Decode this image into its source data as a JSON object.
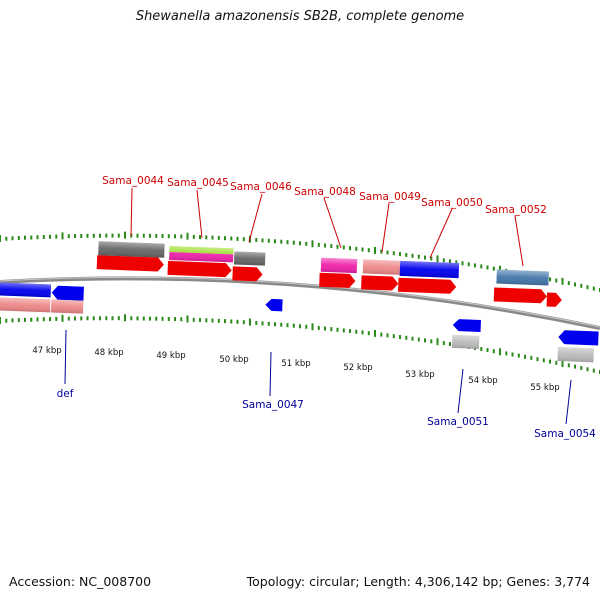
{
  "title": "Shewanella amazonensis SB2B, complete genome",
  "footer": {
    "accession": "Accession: NC_008700",
    "summary": "Topology: circular; Length: 4,306,142 bp; Genes: 3,774"
  },
  "colors": {
    "backbone": "#888888",
    "tick": "#2a8a1a",
    "top_label": "#cc0000",
    "bottom_label": "#000099"
  },
  "ruler": {
    "unit": "kbp",
    "labels": [
      "47 kbp",
      "48 kbp",
      "49 kbp",
      "50 kbp",
      "51 kbp",
      "52 kbp",
      "53 kbp",
      "54 kbp",
      "55 kbp"
    ]
  },
  "top_genes": [
    "Sama_0044",
    "Sama_0045",
    "Sama_0046",
    "Sama_0048",
    "Sama_0049",
    "Sama_0050",
    "Sama_0052"
  ],
  "bottom_genes": [
    "def",
    "Sama_0047",
    "Sama_0051",
    "Sama_0054"
  ]
}
